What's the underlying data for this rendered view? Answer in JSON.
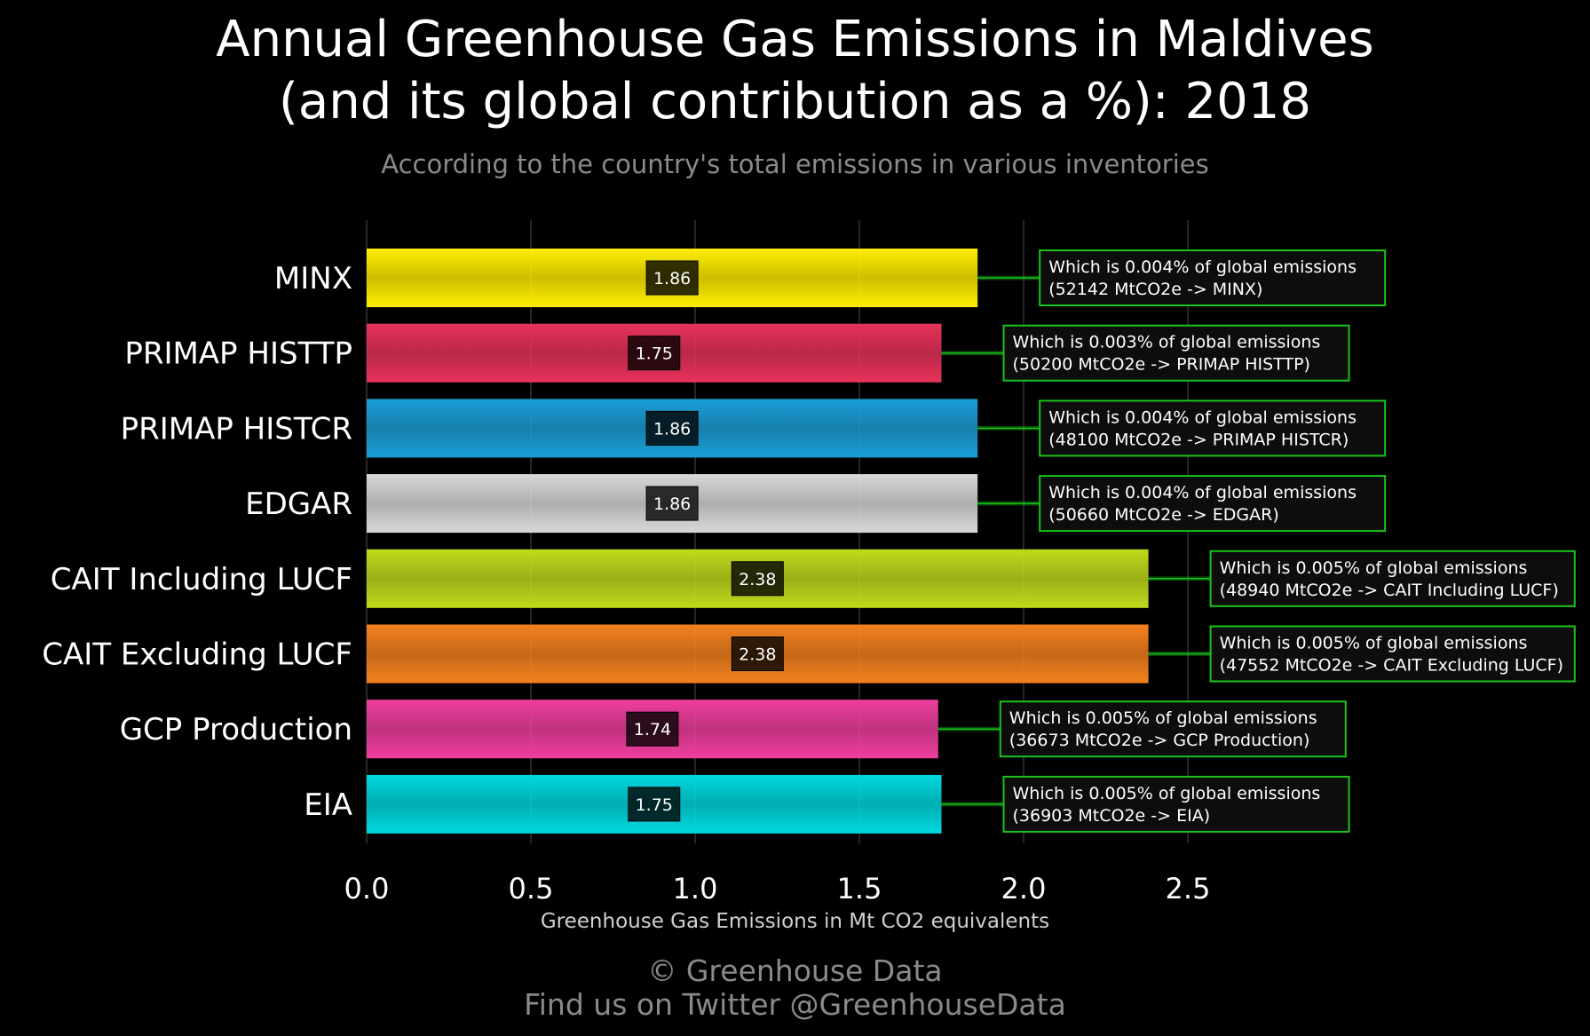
{
  "title_line1": "Annual Greenhouse Gas Emissions in Maldives",
  "title_line2": "(and its global contribution as a %): 2018",
  "subtitle": "According to the country's total emissions in various inventories",
  "credit_line1": "© Greenhouse Data",
  "credit_line2": "Find us on Twitter @GreenhouseData",
  "chart_data": {
    "type": "bar",
    "orientation": "horizontal",
    "xlabel": "Greenhouse Gas Emissions in Mt CO2 equivalents",
    "ylabel": "",
    "xlim": [
      0,
      2.9
    ],
    "xticks": [
      "0.0",
      "0.5",
      "1.0",
      "1.5",
      "2.0",
      "2.5"
    ],
    "grid": "vertical",
    "categories": [
      "MINX",
      "PRIMAP HISTTP",
      "PRIMAP HISTCR",
      "EDGAR",
      "CAIT Including LUCF",
      "CAIT Excluding LUCF",
      "GCP Production",
      "EIA"
    ],
    "values": [
      1.86,
      1.75,
      1.86,
      1.86,
      2.38,
      2.38,
      1.74,
      1.75
    ],
    "value_labels": [
      "1.86",
      "1.75",
      "1.86",
      "1.86",
      "2.38",
      "2.38",
      "1.74",
      "1.75"
    ],
    "colors": [
      "#ffee00",
      "#e8325a",
      "#1b9fd8",
      "#d9d9d9",
      "#c2da1c",
      "#f5821f",
      "#ef3f9e",
      "#00d9e0"
    ],
    "annotations": [
      [
        "Which is 0.004% of global emissions",
        "(52142 MtCO2e -> MINX)"
      ],
      [
        "Which is 0.003% of global emissions",
        "(50200 MtCO2e -> PRIMAP HISTTP)"
      ],
      [
        "Which is 0.004% of global emissions",
        "(48100 MtCO2e -> PRIMAP HISTCR)"
      ],
      [
        "Which is 0.004% of global emissions",
        "(50660 MtCO2e -> EDGAR)"
      ],
      [
        "Which is 0.005% of global emissions",
        "(48940 MtCO2e -> CAIT Including LUCF)"
      ],
      [
        "Which is 0.005% of global emissions",
        "(47552 MtCO2e -> CAIT Excluding LUCF)"
      ],
      [
        "Which is 0.005% of global emissions",
        "(36673 MtCO2e -> GCP Production)"
      ],
      [
        "Which is 0.005% of global emissions",
        "(36903 MtCO2e -> EIA)"
      ]
    ],
    "annotation_border_color": "#19c419",
    "tick_color": "#ffffff",
    "gridline_color": "#333333"
  }
}
